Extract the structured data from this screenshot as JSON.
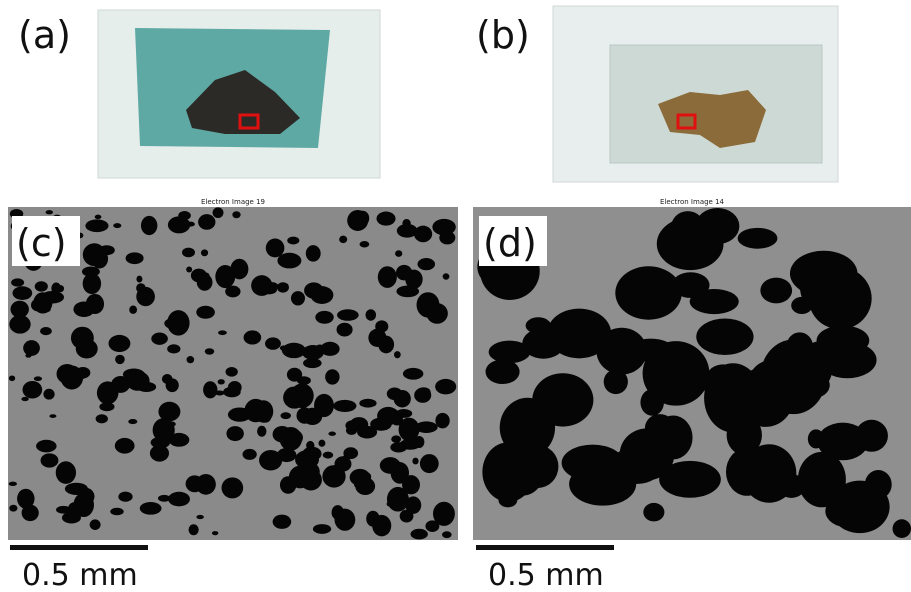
{
  "panels": [
    {
      "label": "(a)"
    },
    {
      "label": "(b)"
    },
    {
      "label": "(c)",
      "image_title": "Electron Image 19",
      "scale_bar": "0.5 mm"
    },
    {
      "label": "(d)",
      "image_title": "Electron Image 14",
      "scale_bar": "0.5 mm"
    }
  ]
}
